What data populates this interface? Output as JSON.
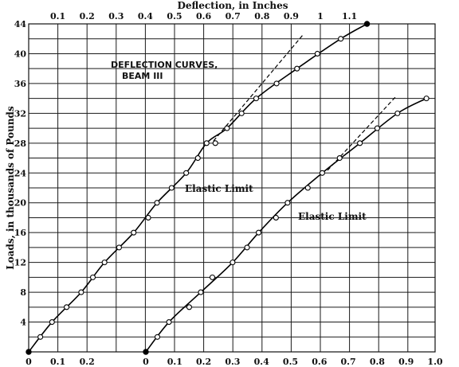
{
  "chart_data": {
    "type": "line",
    "title_top_axis": "Deflection, in Inches",
    "ylabel": "Loads, in thousands of Pounds",
    "annotation_title_line1": "DEFLECTION CURVES,",
    "annotation_title_line2": "BEAM III",
    "annotation_elastic_1": "Elastic Limit",
    "annotation_elastic_2": "Elastic Limit",
    "ylim": [
      0,
      44
    ],
    "y_ticks": [
      4,
      8,
      12,
      16,
      20,
      24,
      28,
      32,
      36,
      40,
      44
    ],
    "top_axis_ticks": [
      "0.1",
      "0.2",
      "0.3",
      "0.4",
      "0.5",
      "0.6",
      "0.7",
      "0.8",
      "0.9",
      "1",
      "1.1"
    ],
    "bottom_axis_ticks_left": [
      "0",
      "0.1",
      "0.2"
    ],
    "bottom_axis_ticks_right": [
      "0",
      "0.1",
      "0.2",
      "0.3",
      "0.4",
      "0.5",
      "0.6",
      "0.7",
      "0.8",
      "0.9",
      "1.0"
    ],
    "grid": true,
    "series": [
      {
        "x": [
          0,
          0.04,
          0.08,
          0.13,
          0.18,
          0.22,
          0.26,
          0.31,
          0.36,
          0.41,
          0.44,
          0.49,
          0.54,
          0.58,
          0.61,
          0.64,
          0.68,
          0.73,
          0.78,
          0.85,
          0.92,
          0.99,
          1.07,
          1.16
        ],
        "y": [
          0,
          2,
          4,
          6,
          8,
          10,
          12,
          14,
          16,
          18,
          20,
          22,
          24,
          26,
          28,
          28,
          30,
          32,
          34,
          36,
          38,
          40,
          42,
          44
        ],
        "solid_last_point": true
      },
      {
        "x": [
          0,
          0.04,
          0.08,
          0.15,
          0.19,
          0.23,
          0.3,
          0.35,
          0.39,
          0.45,
          0.49,
          0.56,
          0.61,
          0.67,
          0.74,
          0.8,
          0.87,
          0.97
        ],
        "y": [
          0,
          2,
          4,
          6,
          8,
          10,
          12,
          14,
          16,
          18,
          20,
          22,
          24,
          26,
          28,
          30,
          32,
          34
        ]
      }
    ]
  }
}
